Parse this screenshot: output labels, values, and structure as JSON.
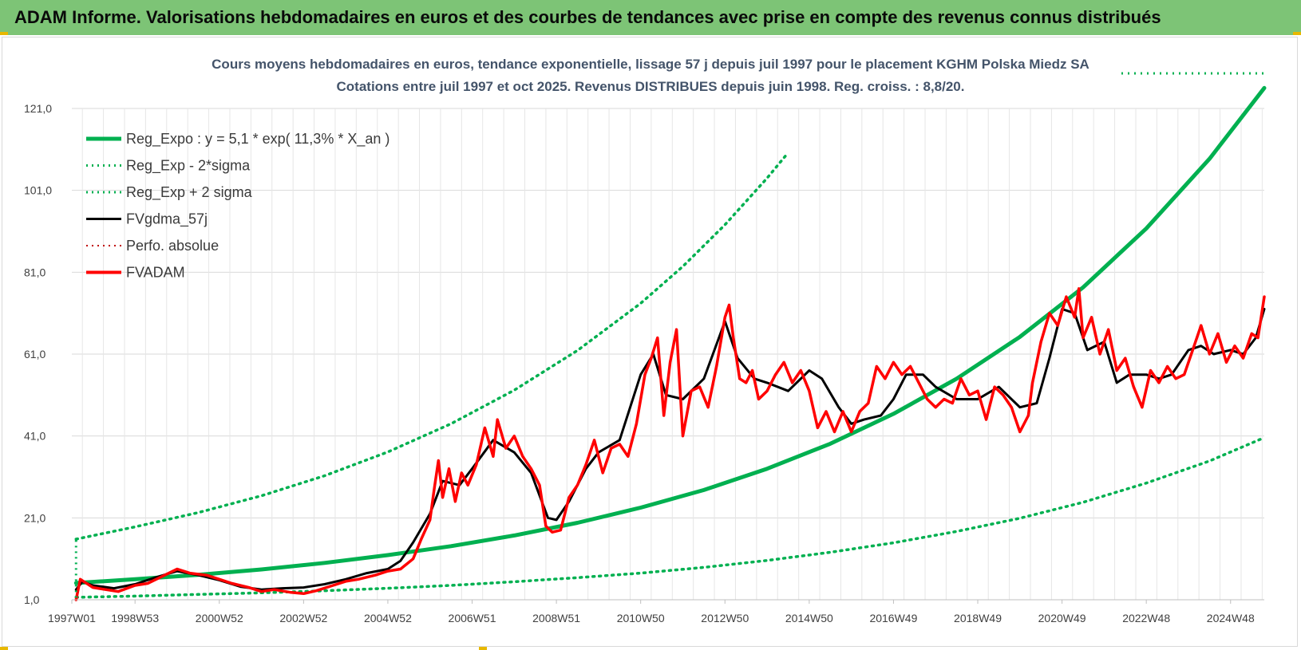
{
  "header": {
    "title": "ADAM Informe. Valorisations hebdomadaires en euros et des courbes de tendances avec prise en compte des revenus connus distribués"
  },
  "colors": {
    "banner": "#7dc476",
    "reg": "#00b050",
    "fv": "#000000",
    "adam": "#ff0000",
    "perf": "#c00000",
    "title": "#44546a"
  },
  "chart_data": {
    "type": "line",
    "title_line1": "Cours moyens hebdomadaires en euros, tendance exponentielle, lissage 57 j depuis juil 1997 pour le placement KGHM Polska Miedz SA",
    "title_line2": "Cotations entre juil 1997 et oct 2025. Revenus DISTRIBUES depuis juin 1998. Reg. croiss. : 8,8/20.",
    "xlabel": "",
    "ylabel": "",
    "xlim": [
      1997.5,
      2025.8
    ],
    "ylim": [
      1,
      121
    ],
    "y_ticks": [
      "1,0",
      "21,0",
      "41,0",
      "61,0",
      "81,0",
      "101,0",
      "121,0"
    ],
    "x_ticks": [
      {
        "label": "1997W01",
        "t": 1997.5
      },
      {
        "label": "1998W53",
        "t": 1999.0
      },
      {
        "label": "2000W52",
        "t": 2001.0
      },
      {
        "label": "2002W52",
        "t": 2003.0
      },
      {
        "label": "2004W52",
        "t": 2005.0
      },
      {
        "label": "2006W51",
        "t": 2007.0
      },
      {
        "label": "2008W51",
        "t": 2009.0
      },
      {
        "label": "2010W50",
        "t": 2011.0
      },
      {
        "label": "2012W50",
        "t": 2013.0
      },
      {
        "label": "2014W50",
        "t": 2015.0
      },
      {
        "label": "2016W49",
        "t": 2017.0
      },
      {
        "label": "2018W49",
        "t": 2019.0
      },
      {
        "label": "2020W49",
        "t": 2021.0
      },
      {
        "label": "2022W48",
        "t": 2023.0
      },
      {
        "label": "2024W48",
        "t": 2025.0
      }
    ],
    "legend": [
      {
        "label": "Reg_Expo : y = 5,1 * exp( 11,3% *  X_an )",
        "color": "#00b050",
        "style": "solid",
        "width": 5
      },
      {
        "label": "Reg_Exp - 2*sigma",
        "color": "#00b050",
        "style": "dotted",
        "width": 3
      },
      {
        "label": "Reg_Exp + 2 sigma",
        "color": "#00b050",
        "style": "dotted",
        "width": 3
      },
      {
        "label": "FVgdma_57j",
        "color": "#000000",
        "style": "solid",
        "width": 3
      },
      {
        "label": "Perfo. absolue",
        "color": "#c00000",
        "style": "dotted",
        "width": 2
      },
      {
        "label": "FVADAM",
        "color": "#ff0000",
        "style": "solid",
        "width": 4
      }
    ],
    "series": [
      {
        "name": "Reg_Expo",
        "x": [
          1997.6,
          1999.0,
          2000.5,
          2002.0,
          2003.5,
          2005.0,
          2006.5,
          2008.0,
          2009.5,
          2011.0,
          2012.5,
          2014.0,
          2015.5,
          2017.0,
          2018.5,
          2020.0,
          2021.5,
          2023.0,
          2024.5,
          2025.8
        ],
        "y": [
          5.1,
          6.0,
          7.1,
          8.4,
          10.0,
          11.9,
          14.1,
          16.7,
          19.8,
          23.5,
          27.8,
          33.0,
          39.1,
          46.4,
          55.0,
          65.2,
          77.3,
          91.7,
          108.7,
          126.0
        ]
      },
      {
        "name": "Reg_Exp - 2*sigma",
        "x": [
          1997.6,
          1999.0,
          2000.5,
          2002.0,
          2003.5,
          2005.0,
          2006.5,
          2008.0,
          2009.5,
          2011.0,
          2012.5,
          2014.0,
          2015.5,
          2017.0,
          2018.5,
          2020.0,
          2021.5,
          2023.0,
          2024.5,
          2025.8
        ],
        "y": [
          1.6,
          1.9,
          2.3,
          2.7,
          3.2,
          3.8,
          4.5,
          5.4,
          6.4,
          7.5,
          8.9,
          10.6,
          12.6,
          14.9,
          17.7,
          20.9,
          24.8,
          29.5,
          34.9,
          40.6
        ]
      },
      {
        "name": "Reg_Exp + 2 sigma",
        "x": [
          1997.6,
          1999.0,
          2000.5,
          2002.0,
          2003.5,
          2005.0,
          2006.5,
          2008.0,
          2009.5,
          2011.0,
          2012.0,
          2013.0,
          2014.0,
          2014.5
        ],
        "y": [
          15.8,
          18.8,
          22.3,
          26.4,
          31.3,
          37.1,
          44.0,
          52.2,
          61.9,
          73.4,
          82.4,
          92.6,
          104.0,
          110.2
        ]
      },
      {
        "name": "FVgdma_57j",
        "x": [
          1997.6,
          1997.75,
          1998.0,
          1998.5,
          1999.0,
          1999.5,
          2000.0,
          2000.5,
          2001.0,
          2001.5,
          2002.0,
          2002.5,
          2003.0,
          2003.5,
          2004.0,
          2004.5,
          2005.0,
          2005.3,
          2005.6,
          2006.0,
          2006.3,
          2006.7,
          2007.0,
          2007.5,
          2008.0,
          2008.4,
          2008.8,
          2009.0,
          2009.3,
          2009.7,
          2010.0,
          2010.5,
          2011.0,
          2011.3,
          2011.6,
          2012.0,
          2012.5,
          2013.0,
          2013.3,
          2013.7,
          2014.0,
          2014.5,
          2015.0,
          2015.3,
          2015.7,
          2016.0,
          2016.3,
          2016.7,
          2017.0,
          2017.3,
          2017.7,
          2018.0,
          2018.5,
          2019.0,
          2019.5,
          2020.0,
          2020.4,
          2020.7,
          2021.0,
          2021.3,
          2021.6,
          2022.0,
          2022.3,
          2022.6,
          2023.0,
          2023.3,
          2023.6,
          2024.0,
          2024.3,
          2024.6,
          2025.0,
          2025.3,
          2025.6,
          2025.8
        ],
        "y": [
          3.5,
          5.4,
          4.5,
          3.8,
          4.8,
          6.5,
          8.0,
          7.0,
          5.8,
          4.2,
          3.5,
          3.8,
          4.0,
          4.8,
          6.0,
          7.5,
          8.5,
          10.5,
          15.0,
          22.0,
          30.0,
          29.0,
          33.0,
          40.0,
          37.0,
          32.0,
          21.0,
          20.5,
          25.0,
          33.0,
          37.0,
          40.0,
          56.0,
          61.0,
          51.0,
          50.0,
          55.0,
          69.0,
          60.0,
          55.0,
          54.0,
          52.0,
          57.0,
          55.0,
          48.0,
          44.0,
          45.0,
          46.0,
          50.0,
          56.0,
          56.0,
          53.0,
          50.0,
          50.0,
          53.0,
          48.0,
          49.0,
          60.0,
          72.0,
          71.0,
          62.0,
          64.0,
          54.0,
          56.0,
          56.0,
          55.0,
          56.0,
          62.0,
          63.0,
          61.0,
          62.0,
          61.0,
          65.0,
          72.0
        ]
      },
      {
        "name": "FVADAM",
        "x": [
          1997.6,
          1997.7,
          1998.0,
          1998.3,
          1998.6,
          1999.0,
          1999.3,
          1999.6,
          2000.0,
          2000.3,
          2000.7,
          2001.0,
          2001.3,
          2001.7,
          2002.0,
          2002.3,
          2002.7,
          2003.0,
          2003.3,
          2003.7,
          2004.0,
          2004.3,
          2004.7,
          2005.0,
          2005.3,
          2005.6,
          2005.8,
          2006.0,
          2006.1,
          2006.2,
          2006.3,
          2006.45,
          2006.6,
          2006.75,
          2006.9,
          2007.1,
          2007.3,
          2007.5,
          2007.6,
          2007.8,
          2008.0,
          2008.2,
          2008.4,
          2008.6,
          2008.75,
          2008.9,
          2009.1,
          2009.3,
          2009.5,
          2009.7,
          2009.9,
          2010.1,
          2010.3,
          2010.5,
          2010.7,
          2010.9,
          2011.1,
          2011.25,
          2011.4,
          2011.55,
          2011.7,
          2011.85,
          2012.0,
          2012.2,
          2012.4,
          2012.6,
          2012.8,
          2013.0,
          2013.1,
          2013.2,
          2013.35,
          2013.5,
          2013.65,
          2013.8,
          2014.0,
          2014.2,
          2014.4,
          2014.6,
          2014.8,
          2015.0,
          2015.2,
          2015.4,
          2015.6,
          2015.8,
          2016.0,
          2016.2,
          2016.4,
          2016.6,
          2016.8,
          2017.0,
          2017.2,
          2017.4,
          2017.6,
          2017.8,
          2018.0,
          2018.2,
          2018.4,
          2018.6,
          2018.8,
          2019.0,
          2019.2,
          2019.4,
          2019.6,
          2019.8,
          2020.0,
          2020.2,
          2020.3,
          2020.5,
          2020.7,
          2020.9,
          2021.1,
          2021.3,
          2021.4,
          2021.5,
          2021.7,
          2021.9,
          2022.1,
          2022.3,
          2022.5,
          2022.7,
          2022.9,
          2023.1,
          2023.3,
          2023.5,
          2023.7,
          2023.9,
          2024.1,
          2024.3,
          2024.5,
          2024.7,
          2024.9,
          2025.1,
          2025.3,
          2025.5,
          2025.65,
          2025.8
        ],
        "y": [
          1.0,
          6.0,
          4.0,
          3.5,
          3.0,
          4.5,
          5.0,
          6.5,
          8.5,
          7.5,
          7.0,
          6.0,
          5.0,
          4.0,
          3.0,
          3.5,
          2.8,
          2.5,
          3.2,
          4.5,
          5.5,
          6.0,
          7.0,
          8.0,
          8.5,
          11.0,
          16.0,
          20.5,
          28.0,
          35.0,
          26.0,
          33.0,
          25.0,
          32.0,
          29.0,
          34.0,
          43.0,
          36.0,
          45.0,
          38.0,
          41.0,
          36.0,
          33.0,
          29.0,
          19.0,
          17.5,
          18.0,
          26.0,
          29.0,
          34.0,
          40.0,
          32.0,
          38.0,
          39.0,
          36.0,
          44.0,
          56.0,
          60.0,
          65.0,
          46.0,
          59.0,
          67.0,
          41.0,
          52.0,
          53.0,
          48.0,
          58.0,
          70.0,
          73.0,
          65.0,
          55.0,
          54.0,
          57.0,
          50.0,
          52.0,
          56.0,
          59.0,
          54.0,
          57.0,
          52.0,
          43.0,
          47.0,
          42.0,
          47.0,
          42.0,
          47.0,
          49.0,
          58.0,
          55.0,
          59.0,
          56.0,
          58.0,
          54.0,
          50.0,
          48.0,
          50.0,
          49.0,
          55.0,
          51.0,
          52.0,
          45.0,
          53.0,
          51.0,
          48.0,
          42.0,
          46.0,
          54.0,
          64.0,
          71.0,
          68.0,
          75.0,
          70.0,
          77.0,
          65.0,
          70.0,
          61.0,
          67.0,
          57.0,
          60.0,
          53.0,
          48.0,
          57.0,
          54.0,
          58.0,
          55.0,
          56.0,
          62.0,
          68.0,
          61.0,
          66.0,
          59.0,
          63.0,
          60.0,
          66.0,
          65.0,
          75.0
        ]
      }
    ]
  }
}
